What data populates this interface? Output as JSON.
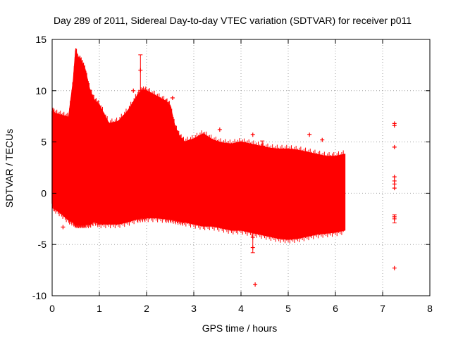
{
  "chart_data": {
    "type": "scatter",
    "title": "Day 289 of 2011, Sidereal Day-to-day VTEC variation (SDTVAR) for receiver p011",
    "xlabel": "GPS time / hours",
    "ylabel": "SDTVAR / TECUs",
    "xlim": [
      0,
      8
    ],
    "ylim": [
      -10,
      15
    ],
    "xticks": [
      0,
      1,
      2,
      3,
      4,
      5,
      6,
      7,
      8
    ],
    "yticks": [
      -10,
      -5,
      0,
      5,
      10,
      15
    ],
    "grid": true,
    "series_color": "#ff0000",
    "band": {
      "name": "SDTVAR error band (dense)",
      "x": [
        0.0,
        0.05,
        0.2,
        0.35,
        0.45,
        0.5,
        0.55,
        0.6,
        0.65,
        0.7,
        0.8,
        0.9,
        1.0,
        1.2,
        1.4,
        1.6,
        1.8,
        1.9,
        2.0,
        2.2,
        2.4,
        2.5,
        2.6,
        2.7,
        2.8,
        3.0,
        3.2,
        3.4,
        3.6,
        3.8,
        4.0,
        4.2,
        4.4,
        4.6,
        4.8,
        5.0,
        5.2,
        5.4,
        5.6,
        5.8,
        6.0,
        6.2
      ],
      "upper": [
        8.0,
        7.8,
        7.6,
        7.4,
        11.0,
        14.0,
        13.0,
        13.0,
        12.5,
        12.0,
        10.0,
        9.0,
        8.6,
        6.8,
        7.0,
        8.0,
        9.5,
        10.0,
        10.0,
        9.5,
        9.0,
        8.5,
        6.5,
        5.5,
        5.0,
        5.3,
        5.8,
        5.2,
        4.9,
        4.8,
        5.0,
        4.8,
        4.6,
        4.4,
        4.3,
        4.3,
        4.2,
        4.0,
        3.8,
        3.6,
        3.6,
        3.8
      ],
      "lower": [
        -1.0,
        -1.5,
        -2.0,
        -2.6,
        -2.8,
        -3.0,
        -3.0,
        -3.0,
        -3.0,
        -3.0,
        -3.0,
        -2.7,
        -3.0,
        -3.0,
        -3.0,
        -2.8,
        -2.5,
        -2.4,
        -2.4,
        -2.4,
        -2.5,
        -2.5,
        -2.6,
        -2.7,
        -2.8,
        -3.0,
        -3.2,
        -3.2,
        -3.4,
        -3.6,
        -3.6,
        -3.8,
        -4.0,
        -4.2,
        -4.4,
        -4.5,
        -4.4,
        -4.2,
        -4.0,
        -3.9,
        -3.8,
        -3.6
      ]
    },
    "points": [
      {
        "x": 0.23,
        "y": -3.3
      },
      {
        "x": 0.62,
        "y": 8.0
      },
      {
        "x": 1.72,
        "y": 10.0
      },
      {
        "x": 1.87,
        "y": 12.0
      },
      {
        "x": 2.55,
        "y": 9.3
      },
      {
        "x": 3.55,
        "y": 6.2
      },
      {
        "x": 4.25,
        "y": 5.7
      },
      {
        "x": 4.25,
        "y": -4.3
      },
      {
        "x": 4.25,
        "y": -5.3
      },
      {
        "x": 4.3,
        "y": -8.9
      },
      {
        "x": 4.45,
        "y": 4.6
      },
      {
        "x": 5.45,
        "y": 5.7
      },
      {
        "x": 5.72,
        "y": 5.2
      },
      {
        "x": 7.25,
        "y": 6.8
      },
      {
        "x": 7.25,
        "y": 6.6
      },
      {
        "x": 7.25,
        "y": 4.5
      },
      {
        "x": 7.25,
        "y": 1.6
      },
      {
        "x": 7.25,
        "y": 1.2
      },
      {
        "x": 7.25,
        "y": 0.9
      },
      {
        "x": 7.25,
        "y": 0.5
      },
      {
        "x": 7.25,
        "y": -2.3
      },
      {
        "x": 7.25,
        "y": -2.5
      },
      {
        "x": 7.25,
        "y": -7.3
      }
    ],
    "errorbars": [
      {
        "x": 1.87,
        "low": 10.0,
        "high": 13.5
      },
      {
        "x": 4.25,
        "low": -5.8,
        "high": -3.5
      },
      {
        "x": 4.45,
        "low": 4.2,
        "high": 5.1
      },
      {
        "x": 7.25,
        "low": -2.9,
        "high": -2.1
      }
    ]
  }
}
